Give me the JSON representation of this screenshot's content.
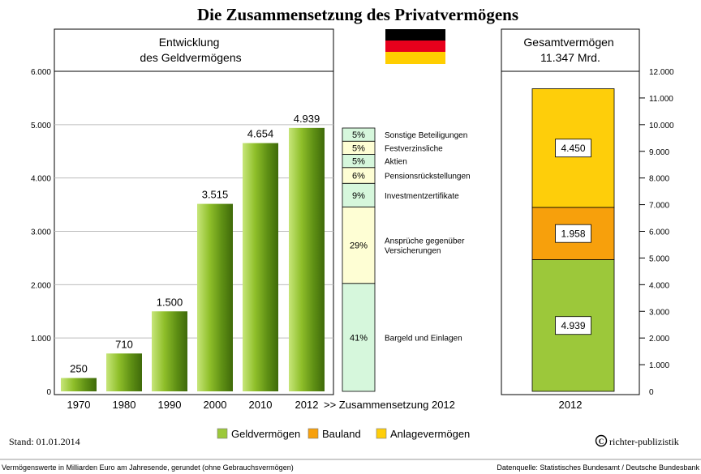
{
  "title": "Die Zusammensetzung des Privatvermögens",
  "colors": {
    "geld_light": "#9cc83a",
    "geld_dark": "#4e7a10",
    "bauland": "#f7a00c",
    "anlage": "#fece0a",
    "comp_green": "#d6f7dc",
    "comp_yellow": "#fefed4",
    "flag_black": "#000000",
    "flag_red": "#e8001c",
    "flag_gold": "#ffce00"
  },
  "chart_data": [
    {
      "type": "bar",
      "title": "Entwicklung\ndes Geldvermögens",
      "categories": [
        "1970",
        "1980",
        "1990",
        "2000",
        "2010",
        "2012"
      ],
      "values": [
        250,
        710,
        1500,
        3515,
        4654,
        4939
      ],
      "value_labels": [
        "250",
        "710",
        "1.500",
        "3.515",
        "4.654",
        "4.939"
      ],
      "ylim": [
        0,
        6000
      ],
      "yticks": [
        0,
        1000,
        2000,
        3000,
        4000,
        5000,
        6000
      ],
      "ytick_labels": [
        "0",
        "1.000",
        "2.000",
        "3.000",
        "4.000",
        "5.000",
        "6.000"
      ]
    },
    {
      "type": "bar",
      "stacked": true,
      "title": "Zusammensetzung 2012",
      "x_label": ">> Zusammensetzung 2012",
      "segments": [
        {
          "label": "Bargeld und Einlagen",
          "percent": 41,
          "percent_label": "41%",
          "color": "green"
        },
        {
          "label": "Ansprüche gegenüber\nVersicherungen",
          "percent": 29,
          "percent_label": "29%",
          "color": "yellow"
        },
        {
          "label": "Investmentzertifikate",
          "percent": 9,
          "percent_label": "9%",
          "color": "green"
        },
        {
          "label": "Pensionsrückstellungen",
          "percent": 6,
          "percent_label": "6%",
          "color": "yellow"
        },
        {
          "label": "Aktien",
          "percent": 5,
          "percent_label": "5%",
          "color": "green"
        },
        {
          "label": "Festverzinsliche",
          "percent": 5,
          "percent_label": "5%",
          "color": "yellow"
        },
        {
          "label": "Sonstige Beteiligungen",
          "percent": 5,
          "percent_label": "5%",
          "color": "green"
        }
      ]
    },
    {
      "type": "bar",
      "stacked": true,
      "title": "Gesamtvermögen\n11.347 Mrd.",
      "categories": [
        "2012"
      ],
      "series": [
        {
          "name": "Geldvermögen",
          "values": [
            4939
          ],
          "value_label": "4.939"
        },
        {
          "name": "Bauland",
          "values": [
            1958
          ],
          "value_label": "1.958"
        },
        {
          "name": "Anlagevermögen",
          "values": [
            4450
          ],
          "value_label": "4.450"
        }
      ],
      "ylim": [
        0,
        12000
      ],
      "yticks": [
        0,
        1000,
        2000,
        3000,
        4000,
        5000,
        6000,
        7000,
        8000,
        9000,
        10000,
        11000,
        12000
      ],
      "ytick_labels": [
        "0",
        "1.000",
        "2.000",
        "3.000",
        "4.000",
        "5.000",
        "6.000",
        "7.000",
        "8.000",
        "9.000",
        "10.000",
        "11.000",
        "12.000"
      ]
    }
  ],
  "legend": [
    {
      "name": "Geldvermögen",
      "color": "#9cc83a"
    },
    {
      "name": "Bauland",
      "color": "#f7a00c"
    },
    {
      "name": "Anlagevermögen",
      "color": "#fece0a"
    }
  ],
  "stand": "Stand: 01.01.2014",
  "copyright": "richter-publizistik",
  "copyright_symbol": "C",
  "footer_left": "Vermögenswerte in Milliarden Euro am Jahresende, gerundet (ohne Gebrauchsvermögen)",
  "footer_right": "Datenquelle: Statistisches Bundesamt / Deutsche Bundesbank"
}
